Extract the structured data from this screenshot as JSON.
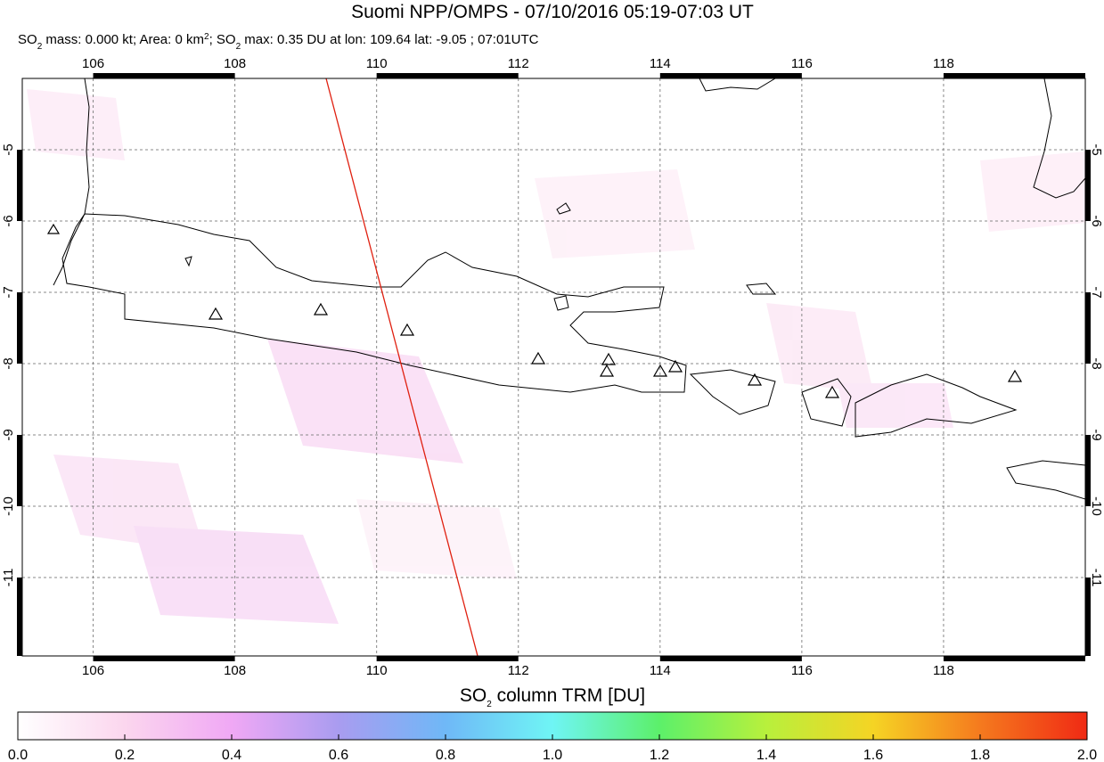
{
  "title": "Suomi NPP/OMPS - 07/10/2016 05:19-07:03 UT",
  "subtitle": [
    {
      "text": "SO"
    },
    {
      "text": "2",
      "sub": true
    },
    {
      "text": " mass: 0.000 kt; Area: 0 km"
    },
    {
      "text": "2",
      "sup": true
    },
    {
      "text": "; SO"
    },
    {
      "text": "2",
      "sub": true
    },
    {
      "text": " max: 0.35 DU at lon: 109.64 lat: -9.05 ; 07:01UTC"
    }
  ],
  "map": {
    "lonlim": [
      105,
      120
    ],
    "latlim": [
      -4,
      -12.1
    ],
    "lonticks": [
      106,
      108,
      110,
      112,
      114,
      116,
      118
    ],
    "latticks": [
      -5,
      -6,
      -7,
      -8,
      -9,
      -10,
      -11
    ],
    "grid": true
  },
  "colorbar": {
    "title": [
      {
        "text": "SO"
      },
      {
        "text": "2",
        "sub": true
      },
      {
        "text": " column TRM [DU]"
      }
    ],
    "lim": [
      0,
      2
    ],
    "ticks": [
      {
        "value": 0,
        "label": "0.0"
      },
      0.2,
      0.4,
      0.6,
      0.8,
      {
        "value": 1,
        "label": "1.0"
      },
      1.2,
      1.4,
      1.6,
      1.8,
      {
        "value": 2,
        "label": "2.0"
      }
    ],
    "colors": [
      "#ffffff",
      "#fbd6ee",
      "#f0a8f5",
      "#a99cf0",
      "#6fb8f7",
      "#6ff5f5",
      "#5cf06a",
      "#b8f03c",
      "#f5d424",
      "#f57a1e",
      "#f02a14"
    ]
  }
}
